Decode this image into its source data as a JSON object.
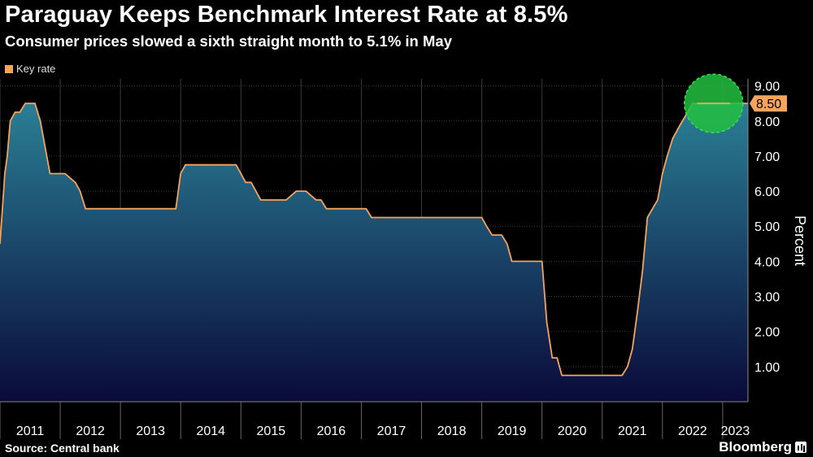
{
  "header": {
    "title": "Paraguay Keeps Benchmark Interest Rate at 8.5%",
    "subtitle": "Consumer prices slowed a sixth straight month to 5.1% in May"
  },
  "footer": {
    "source": "Source: Central bank",
    "brand": "Bloomberg"
  },
  "colors": {
    "background": "#000000",
    "line": "#f5a45d",
    "area_top": "#2a7f95",
    "area_bottom": "#0a0a3a",
    "highlight": "#22c040",
    "grid": "#3a3a3a"
  },
  "chart_data": {
    "type": "area",
    "title": "Paraguay Keeps Benchmark Interest Rate at 8.5%",
    "subtitle": "Consumer prices slowed a sixth straight month to 5.1% in May",
    "ylabel": "Percent",
    "xlabel": "",
    "ylim": [
      0,
      9.2
    ],
    "yticks": [
      1,
      2,
      3,
      4,
      5,
      6,
      7,
      8,
      9
    ],
    "ytick_labels": [
      "1.00",
      "2.00",
      "3.00",
      "4.00",
      "5.00",
      "6.00",
      "7.00",
      "8.00",
      "9.00"
    ],
    "xlim": [
      2011.0,
      2023.42
    ],
    "x_categories": [
      "2011",
      "2012",
      "2013",
      "2014",
      "2015",
      "2016",
      "2017",
      "2018",
      "2019",
      "2020",
      "2021",
      "2022",
      "2023"
    ],
    "legend": [
      "Key rate"
    ],
    "legend_position": "top-left",
    "grid": true,
    "last_value_label": "8.50",
    "annotation": "green circle highlighting latest value",
    "series": [
      {
        "name": "Key rate",
        "x": [
          2011.0,
          2011.08,
          2011.12,
          2011.17,
          2011.25,
          2011.33,
          2011.42,
          2011.58,
          2011.67,
          2011.83,
          2011.92,
          2012.0,
          2012.08,
          2012.25,
          2012.33,
          2012.42,
          2012.5,
          2012.58,
          2013.0,
          2013.92,
          2014.0,
          2014.08,
          2014.17,
          2014.25,
          2014.92,
          2015.0,
          2015.08,
          2015.17,
          2015.25,
          2015.33,
          2015.42,
          2015.5,
          2015.75,
          2015.92,
          2016.0,
          2016.08,
          2016.25,
          2016.33,
          2016.42,
          2016.5,
          2017.0,
          2017.08,
          2017.17,
          2018.0,
          2018.5,
          2018.58,
          2018.67,
          2018.75,
          2019.0,
          2019.08,
          2019.17,
          2019.25,
          2019.33,
          2019.42,
          2019.5,
          2019.83,
          2019.92,
          2020.0,
          2020.08,
          2020.17,
          2020.25,
          2020.33,
          2020.42,
          2020.5,
          2021.0,
          2021.17,
          2021.25,
          2021.33,
          2021.42,
          2021.5,
          2021.58,
          2021.67,
          2021.75,
          2021.92,
          2022.0,
          2022.08,
          2022.17,
          2022.25,
          2022.33,
          2022.42,
          2022.5,
          2022.58,
          2022.67,
          2022.75,
          2022.83,
          2022.92,
          2023.0,
          2023.17,
          2023.42
        ],
        "values": [
          4.5,
          6.5,
          7.0,
          8.0,
          8.25,
          8.25,
          8.5,
          8.5,
          8.0,
          6.5,
          6.5,
          6.5,
          6.5,
          6.25,
          6.0,
          5.5,
          5.5,
          5.5,
          5.5,
          5.5,
          6.5,
          6.75,
          6.75,
          6.75,
          6.75,
          6.5,
          6.25,
          6.25,
          6.0,
          5.75,
          5.75,
          5.75,
          5.75,
          6.0,
          6.0,
          6.0,
          5.75,
          5.75,
          5.5,
          5.5,
          5.5,
          5.5,
          5.25,
          5.25,
          5.25,
          5.25,
          5.25,
          5.25,
          5.25,
          5.0,
          4.75,
          4.75,
          4.75,
          4.5,
          4.0,
          4.0,
          4.0,
          4.0,
          2.25,
          1.25,
          1.25,
          0.75,
          0.75,
          0.75,
          0.75,
          0.75,
          0.75,
          0.75,
          1.0,
          1.5,
          2.5,
          3.75,
          5.25,
          5.75,
          6.5,
          7.0,
          7.5,
          7.75,
          8.0,
          8.25,
          8.5,
          8.5,
          8.5,
          8.5,
          8.5,
          8.5,
          8.5,
          8.5,
          8.5
        ]
      }
    ]
  }
}
